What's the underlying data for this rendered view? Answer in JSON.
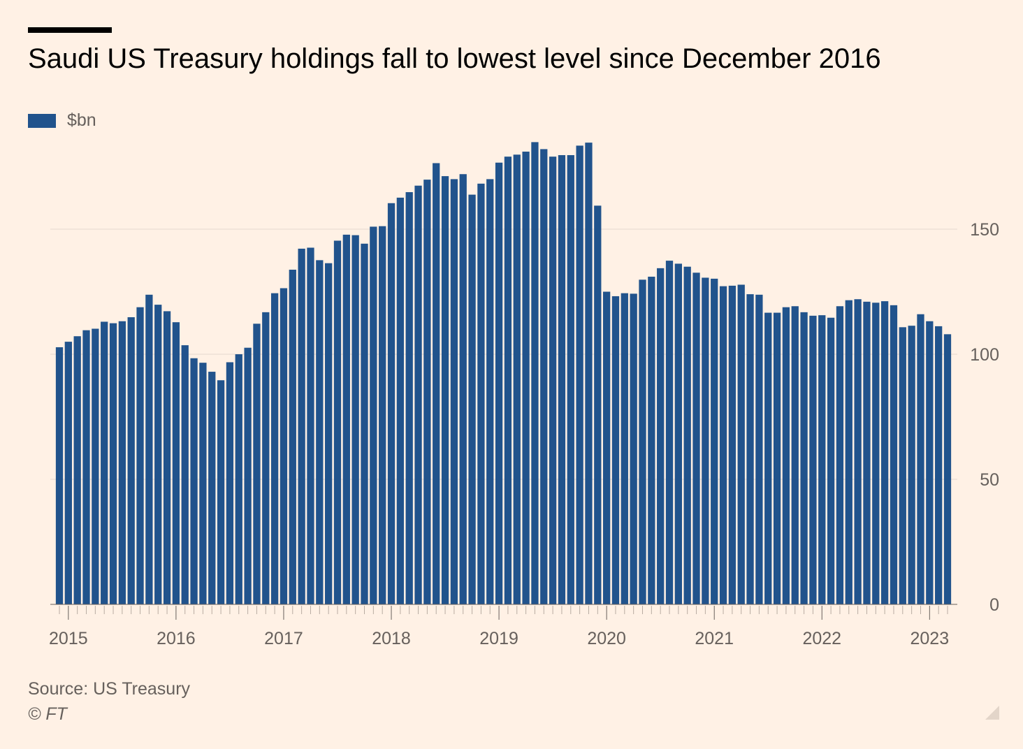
{
  "title": "Saudi US Treasury holdings fall to lowest level since December 2016",
  "source": "Source: US Treasury",
  "credit": "© FT",
  "colors": {
    "bar": "#21538c",
    "background": "#fff1e5",
    "grid": "#e6d9ce",
    "axis": "#66605c"
  },
  "chart_data": {
    "type": "bar",
    "title": "Saudi US Treasury holdings fall to lowest level since December 2016",
    "legend": [
      {
        "name": "$bn",
        "color": "#21538c"
      }
    ],
    "legend_placement": "top-left",
    "ylabel": "",
    "xlabel": "",
    "ylim": [
      0,
      185
    ],
    "yticks": [
      0,
      50,
      100,
      150
    ],
    "y_axis_side": "right",
    "grid": true,
    "xtick_labels": [
      "2015",
      "2016",
      "2017",
      "2018",
      "2019",
      "2020",
      "2021",
      "2022",
      "2023"
    ],
    "xtick_dates": [
      "2015-01",
      "2016-01",
      "2017-01",
      "2018-01",
      "2019-01",
      "2020-01",
      "2021-01",
      "2022-01",
      "2023-01"
    ],
    "start_month": "2014-12",
    "series": [
      {
        "name": "$bn",
        "values": [
          102.8,
          105.0,
          107.2,
          109.6,
          110.2,
          113.0,
          112.4,
          113.2,
          114.8,
          118.8,
          123.8,
          119.8,
          117.2,
          112.8,
          103.6,
          98.4,
          96.6,
          93.0,
          89.6,
          96.8,
          100.0,
          102.6,
          112.2,
          116.8,
          124.4,
          126.4,
          133.8,
          142.2,
          142.6,
          137.6,
          136.4,
          145.4,
          147.8,
          147.6,
          144.2,
          151.0,
          151.2,
          160.4,
          162.6,
          164.8,
          167.4,
          169.8,
          176.4,
          171.2,
          170.0,
          172.0,
          163.8,
          168.2,
          170.0,
          176.6,
          179.0,
          179.8,
          181.0,
          184.8,
          182.0,
          179.0,
          179.6,
          179.6,
          183.4,
          184.6,
          159.4,
          125.0,
          123.2,
          124.4,
          124.2,
          129.8,
          131.0,
          134.4,
          137.4,
          136.2,
          135.0,
          132.6,
          130.6,
          130.2,
          127.2,
          127.4,
          127.8,
          124.0,
          123.8,
          116.6,
          116.6,
          118.8,
          119.2,
          116.8,
          115.4,
          115.6,
          114.6,
          119.2,
          121.6,
          122.0,
          121.0,
          120.6,
          121.2,
          119.6,
          110.8,
          111.4,
          116.0,
          113.2,
          111.2,
          108.0
        ]
      }
    ]
  }
}
